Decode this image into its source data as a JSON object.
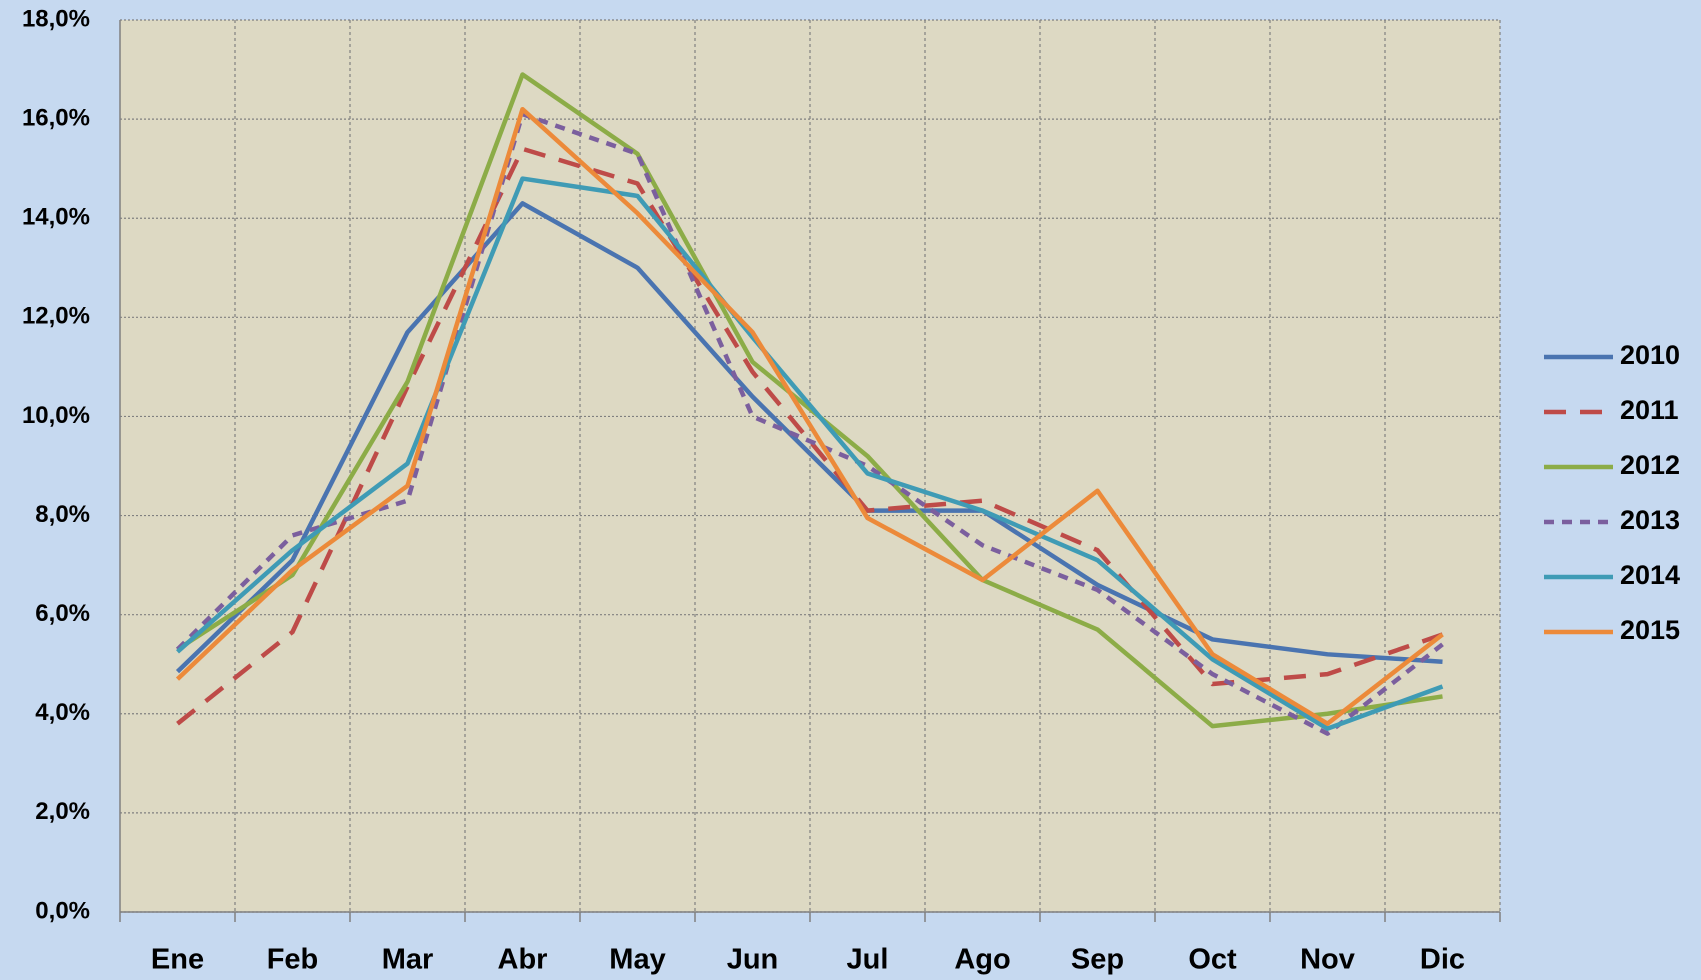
{
  "chart_data": {
    "type": "line",
    "categories": [
      "Ene",
      "Feb",
      "Mar",
      "Abr",
      "May",
      "Jun",
      "Jul",
      "Ago",
      "Sep",
      "Oct",
      "Nov",
      "Dic"
    ],
    "series": [
      {
        "name": "2010",
        "color": "#4a74b0",
        "dash": "solid",
        "values": [
          4.85,
          7.1,
          11.7,
          14.3,
          13.0,
          10.4,
          8.1,
          8.1,
          6.6,
          5.5,
          5.2,
          5.05
        ]
      },
      {
        "name": "2011",
        "color": "#be4b48",
        "dash": "long",
        "values": [
          3.8,
          5.65,
          10.6,
          15.4,
          14.7,
          10.9,
          8.1,
          8.3,
          7.3,
          4.6,
          4.8,
          5.6
        ]
      },
      {
        "name": "2012",
        "color": "#8cac47",
        "dash": "solid",
        "values": [
          5.3,
          6.8,
          10.7,
          16.9,
          15.3,
          11.1,
          9.2,
          6.7,
          5.7,
          3.75,
          4.0,
          4.35
        ]
      },
      {
        "name": "2013",
        "color": "#7b5f9e",
        "dash": "short",
        "values": [
          5.3,
          7.6,
          8.3,
          16.1,
          15.3,
          10.0,
          9.0,
          7.4,
          6.5,
          4.8,
          3.6,
          5.4
        ]
      },
      {
        "name": "2014",
        "color": "#3f9bb5",
        "dash": "solid",
        "values": [
          5.25,
          7.3,
          9.05,
          14.8,
          14.45,
          11.6,
          8.85,
          8.1,
          7.1,
          5.1,
          3.7,
          4.55
        ]
      },
      {
        "name": "2015",
        "color": "#ec8a3a",
        "dash": "solid",
        "values": [
          4.7,
          6.9,
          8.6,
          16.2,
          14.1,
          11.7,
          7.95,
          6.7,
          8.5,
          5.2,
          3.8,
          5.6
        ]
      }
    ],
    "ylim": [
      0,
      18
    ],
    "yticks": [
      {
        "value": 0,
        "label": "0,0%"
      },
      {
        "value": 2,
        "label": "2,0%"
      },
      {
        "value": 4,
        "label": "4,0%"
      },
      {
        "value": 6,
        "label": "6,0%"
      },
      {
        "value": 8,
        "label": "8,0%"
      },
      {
        "value": 10,
        "label": "10,0%"
      },
      {
        "value": 12,
        "label": "12,0%"
      },
      {
        "value": 14,
        "label": "14,0%"
      },
      {
        "value": 16,
        "label": "16,0%"
      },
      {
        "value": 18,
        "label": "18,0%"
      }
    ],
    "grid": true,
    "legend": "right"
  }
}
